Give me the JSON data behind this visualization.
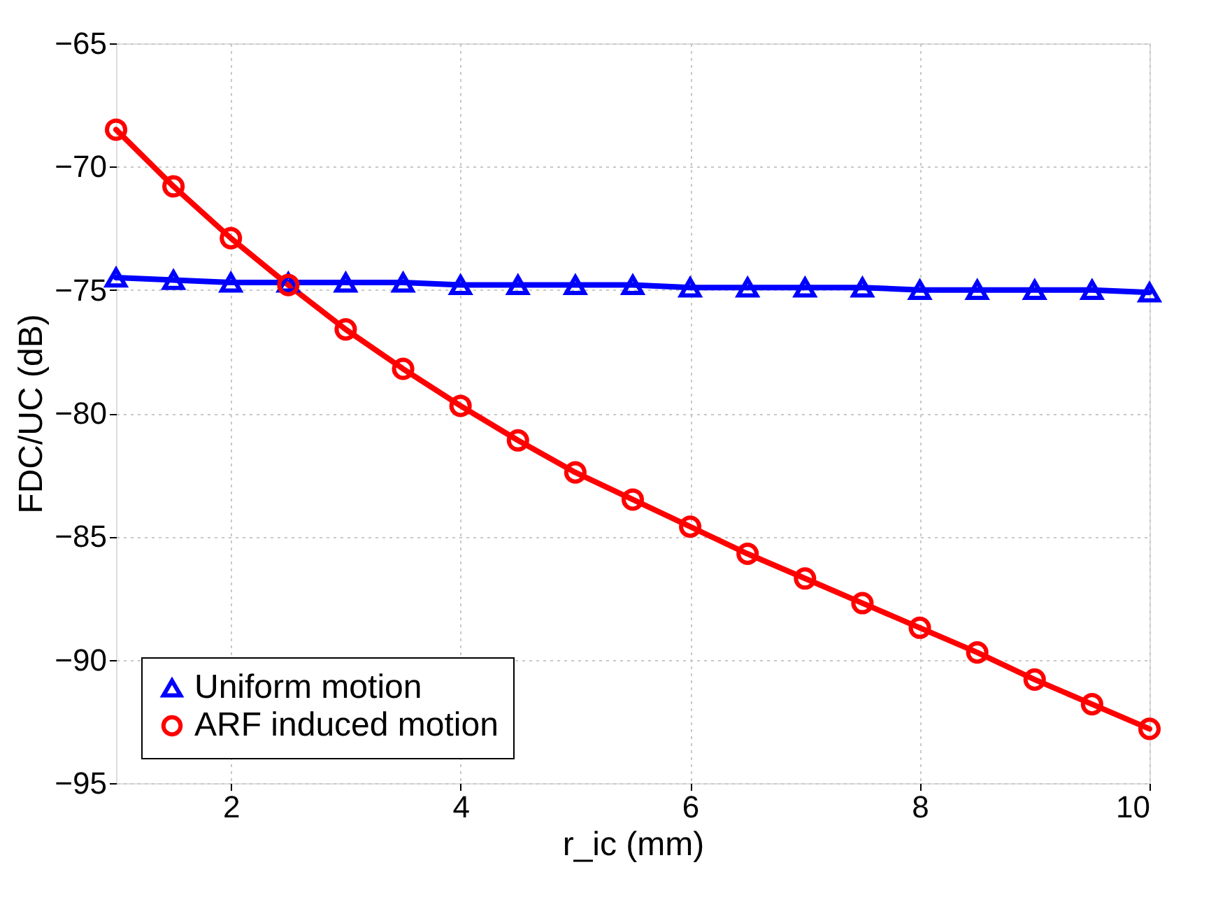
{
  "chart_data": {
    "type": "line",
    "xlabel": "r_ic (mm)",
    "ylabel": "FDC/UC (dB)",
    "x": [
      1,
      1.5,
      2,
      2.5,
      3,
      3.5,
      4,
      4.5,
      5,
      5.5,
      6,
      6.5,
      7,
      7.5,
      8,
      8.5,
      9,
      9.5,
      10
    ],
    "series": [
      {
        "name": "Uniform motion",
        "color": "#0000ff",
        "marker": "triangle",
        "values": [
          -74.5,
          -74.6,
          -74.7,
          -74.7,
          -74.7,
          -74.7,
          -74.8,
          -74.8,
          -74.8,
          -74.8,
          -74.9,
          -74.9,
          -74.9,
          -74.9,
          -75.0,
          -75.0,
          -75.0,
          -75.0,
          -75.1
        ]
      },
      {
        "name": "ARF induced motion",
        "color": "#ff0000",
        "marker": "circle",
        "values": [
          -68.5,
          -70.8,
          -72.9,
          -74.8,
          -76.6,
          -78.2,
          -79.7,
          -81.1,
          -82.4,
          -83.5,
          -84.6,
          -85.7,
          -86.7,
          -87.7,
          -88.7,
          -89.7,
          -90.8,
          -91.8,
          -92.8
        ]
      }
    ],
    "xlim": [
      1,
      10
    ],
    "xticks": [
      2,
      4,
      6,
      8,
      10
    ],
    "ylim": [
      -95,
      -65
    ],
    "yticks": [
      -95,
      -90,
      -85,
      -80,
      -75,
      -70,
      -65
    ],
    "grid": true,
    "legend": "bottom left",
    "line_style": "solid"
  }
}
